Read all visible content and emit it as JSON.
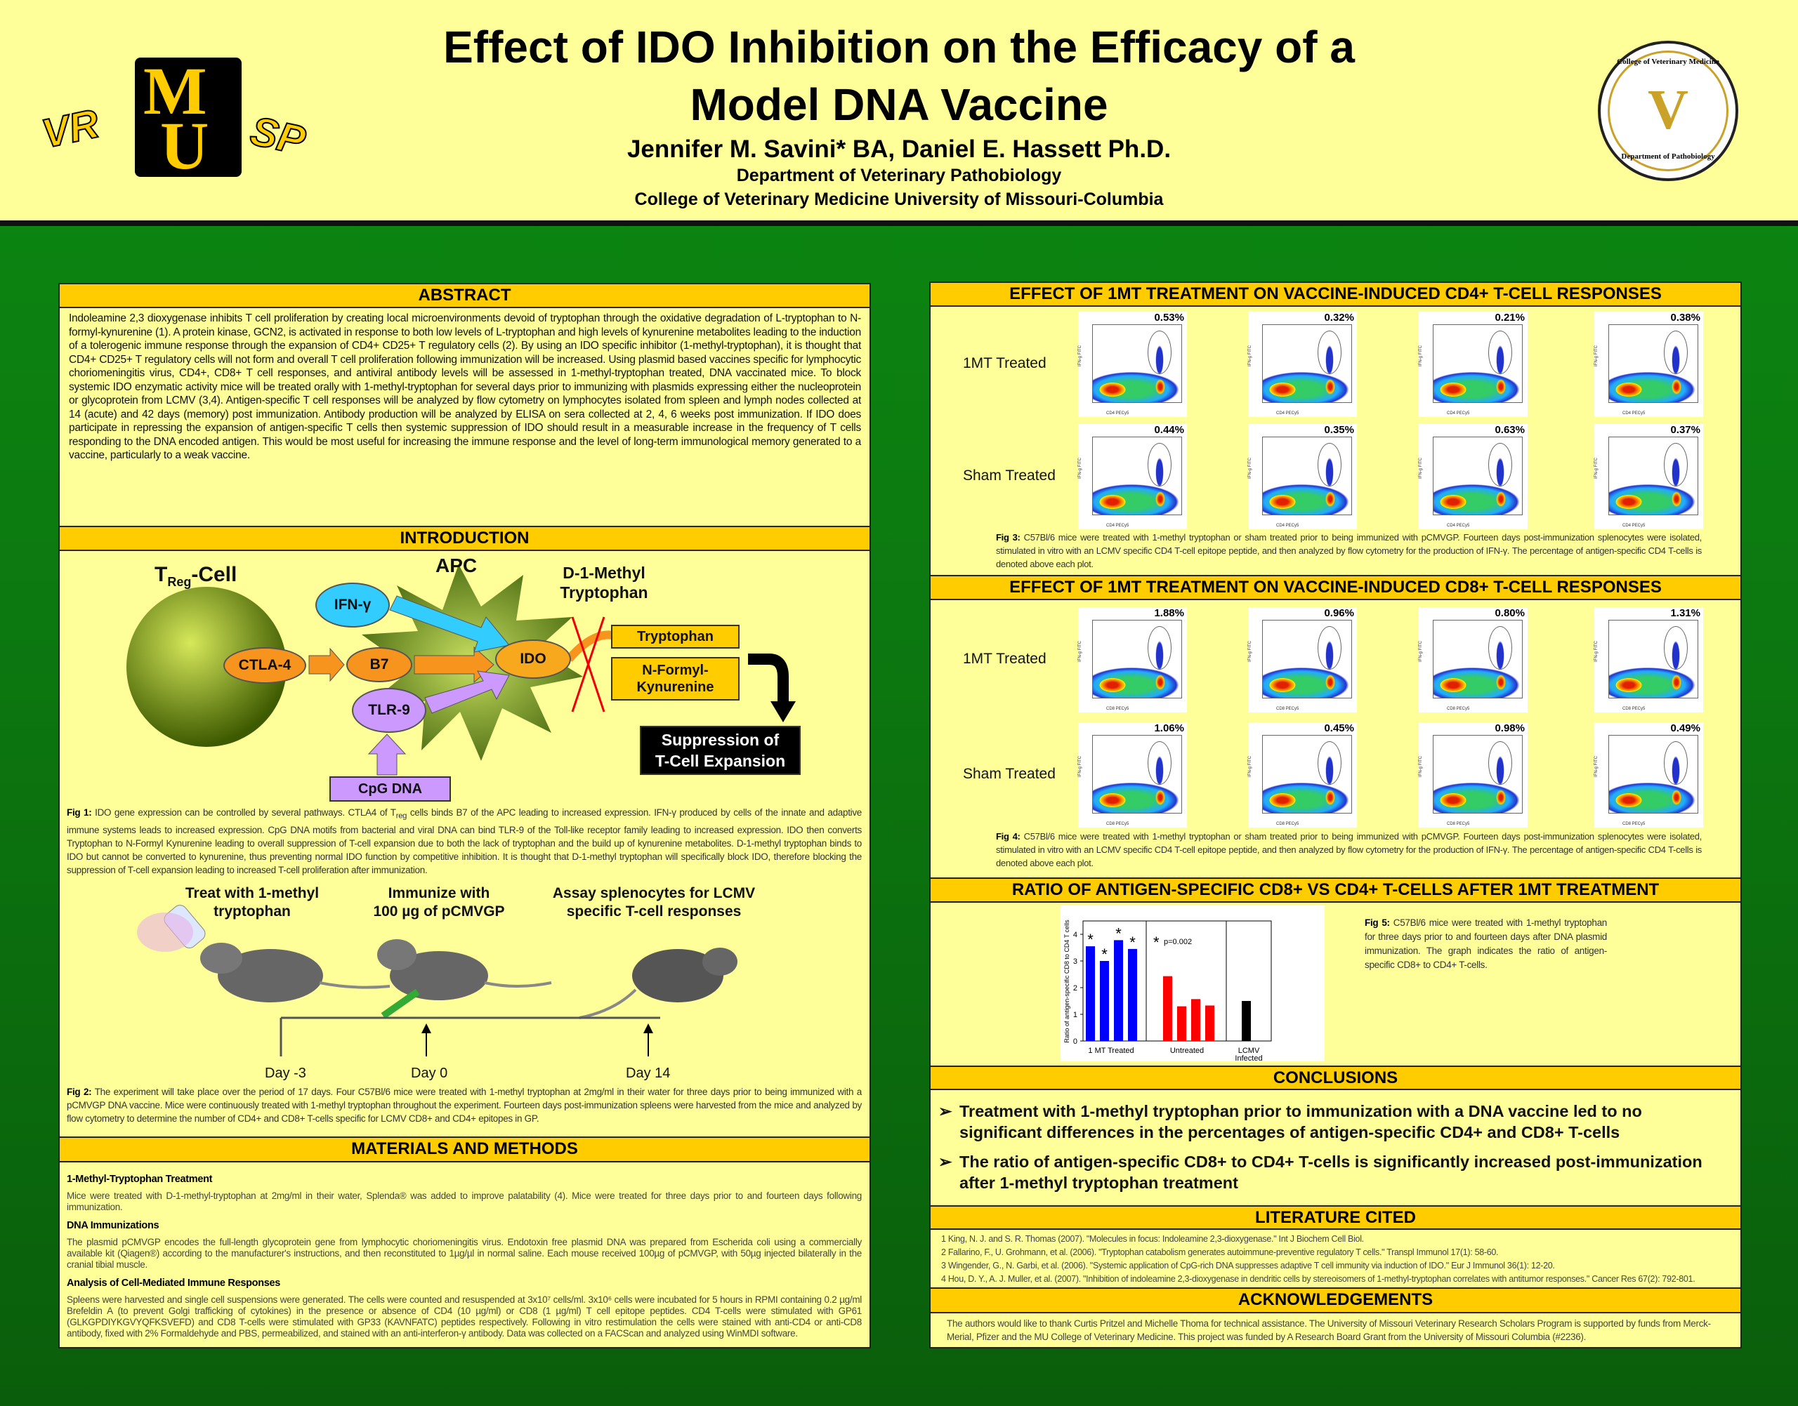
{
  "header": {
    "title_line1": "Effect of IDO Inhibition on the Efficacy of a",
    "title_line2": "Model DNA Vaccine",
    "authors": "Jennifer M. Savini* BA, Daniel E. Hassett Ph.D.",
    "department": "Department of Veterinary Pathobiology",
    "college": "College of Veterinary Medicine  University of Missouri-Columbia",
    "logo_left": {
      "vr": "VR",
      "m": "M",
      "u": "U",
      "sp": "SP"
    },
    "seal": {
      "top": "College of Veterinary Medicine",
      "bottom": "Department of Pathobiology",
      "center": "V"
    }
  },
  "abstract": {
    "heading": "ABSTRACT",
    "text": "Indoleamine 2,3 dioxygenase inhibits T cell proliferation by creating local microenvironments devoid of tryptophan through the oxidative degradation of L-tryptophan to N-formyl-kynurenine (1).  A protein kinase, GCN2, is activated in response to both low levels of L-tryptophan and high levels of kynurenine metabolites leading to the induction of a tolerogenic immune response through the expansion of CD4+ CD25+ T regulatory cells (2).  By using an IDO specific inhibitor (1-methyl-tryptophan), it is thought that CD4+ CD25+ T regulatory cells will not form and overall T cell proliferation following immunization will be increased.   Using plasmid based vaccines specific for lymphocytic choriomeningitis virus, CD4+, CD8+ T cell responses, and antiviral antibody levels will be assessed in 1-methyl-tryptophan treated, DNA vaccinated mice. To block systemic IDO enzymatic activity mice will be treated orally with 1-methyl-tryptophan for several days prior to immunizing with plasmids expressing either the nucleoprotein or glycoprotein from LCMV (3,4).  Antigen-specific T cell responses will be analyzed by flow cytometry on lymphocytes isolated from spleen and lymph nodes collected at 14 (acute) and 42 days (memory) post immunization.  Antibody production will be analyzed by ELISA on sera collected at 2, 4, 6 weeks post immunization.  If IDO does participate in repressing the expansion of antigen-specific T cells then systemic suppression of IDO should result in a measurable increase in the frequency of T cells responding to the DNA encoded antigen. This would be most useful for increasing the immune response and the level of long-term immunological memory generated to a vaccine, particularly to a weak vaccine."
  },
  "intro": {
    "heading": "INTRODUCTION",
    "diagram": {
      "treg": "T",
      "treg_sub": "Reg",
      "treg_suffix": "-Cell",
      "apc": "APC",
      "ctla4": "CTLA-4",
      "b7": "B7",
      "ifn": "IFN-γ",
      "ido": "IDO",
      "tlr9": "TLR-9",
      "cpg": "CpG DNA",
      "d1mt_line1": "D-1-Methyl",
      "d1mt_line2": "Tryptophan",
      "tryptophan": "Tryptophan",
      "kyn_line1": "N-Formyl-",
      "kyn_line2": "Kynurenine",
      "suppression_line1": "Suppression of",
      "suppression_line2": "T-Cell Expansion"
    },
    "fig1": {
      "label": "Fig 1:",
      "text_a": " IDO gene expression can be controlled by several pathways.  CTLA4 of T",
      "sub": "reg",
      "text_b": " cells binds B7 of the APC leading to increased expression.  IFN-γ produced by cells of the innate and adaptive immune systems leads to increased expression.  CpG DNA motifs from bacterial and viral DNA can bind TLR-9 of the Toll-like receptor family leading to increased expression.  IDO then converts Tryptophan to N-Formyl Kynurenine leading to overall suppression of T-cell expansion due to both the lack of tryptophan and the build up of kynurenine metabolites.  D-1-methyl tryptophan binds to IDO but cannot be converted to kynurenine, thus preventing normal IDO function by competitive inhibition.  It is thought that D-1-methyl tryptophan will specifically block IDO, therefore blocking the suppression of T-cell expansion leading to increased T-cell proliferation after immunization."
    },
    "steps": [
      {
        "line1": "Treat with 1-methyl",
        "line2": "tryptophan"
      },
      {
        "line1": "Immunize with",
        "line2": "100 µg of pCMVGP"
      },
      {
        "line1": "Assay splenocytes for LCMV",
        "line2": "specific T-cell responses"
      }
    ],
    "days": [
      "Day -3",
      "Day 0",
      "Day 14"
    ],
    "fig2": {
      "label": "Fig 2:",
      "text": " The experiment will take place over the period of 17 days.  Four C57Bl/6 mice were treated with 1-methyl tryptophan at 2mg/ml in their water for three days prior to being immunized with a pCMVGP DNA vaccine.  Mice were continuously treated with 1-methyl tryptophan throughout the experiment.  Fourteen days post-immunization spleens were harvested from the mice and analyzed by flow cytometry to determine the number of CD4+ and CD8+ T-cells specific for LCMV CD8+ and CD4+ epitopes in GP."
    }
  },
  "methods": {
    "heading": "MATERIALS AND METHODS",
    "sections": [
      {
        "title": "1-Methyl-Tryptophan Treatment",
        "text": "Mice were treated with D-1-methyl-tryptophan at 2mg/ml in their water, Splenda® was added to improve palatability (4).  Mice were treated for three days prior to and fourteen days following immunization."
      },
      {
        "title": "DNA Immunizations",
        "text": "The plasmid pCMVGP encodes the full-length glycoprotein gene from lymphocytic choriomeningitis virus. Endotoxin free plasmid DNA was prepared from Escherida coli using a commercially available kit (Qiagen®) according to the manufacturer's instructions, and then reconstituted to 1µg/µl in normal saline.  Each mouse received 100µg of pCMVGP, with 50µg injected bilaterally in the cranial tibial muscle."
      },
      {
        "title": "Analysis of Cell-Mediated Immune Responses",
        "text": "Spleens were harvested and single cell suspensions were generated.  The cells were counted and resuspended at 3x10⁷ cells/ml. 3x10⁶ cells were incubated for 5 hours in RPMI containing 0.2 µg/ml Brefeldin A (to prevent Golgi trafficking of cytokines) in the presence or absence of CD4 (10 µg/ml) or CD8 (1 µg/ml) T cell epitope  peptides. CD4 T-cells were stimulated with GP61 (GLKGPDIYKGVYQFKSVEFD) and CD8 T-cells were stimulated with GP33 (KAVNFATC) peptides respectively.  Following in vitro restimulation the cells were stained with anti-CD4 or anti-CD8 antibody,  fixed with 2% Formaldehyde and PBS, permeabilized, and stained with an anti-interferon-γ antibody. Data was collected on a FACScan and analyzed  using WinMDI software."
      }
    ]
  },
  "cd4": {
    "heading": "EFFECT OF 1MT TREATMENT ON VACCINE-INDUCED CD4+ T-CELL RESPONSES",
    "rows": [
      {
        "label": "1MT Treated",
        "values": [
          "0.53%",
          "0.32%",
          "0.21%",
          "0.38%"
        ]
      },
      {
        "label": "Sham Treated",
        "values": [
          "0.44%",
          "0.35%",
          "0.63%",
          "0.37%"
        ]
      }
    ],
    "x_axis": "CD4 PECy5",
    "y_axis": "IFN-g FITC",
    "caption_label": "Fig 3:",
    "caption": "  C57Bl/6 mice were treated with 1-methyl tryptophan or sham treated prior to being immunized with pCMVGP.  Fourteen days post-immunization splenocytes were isolated, stimulated in vitro with an LCMV specific CD4 T-cell epitope peptide, and then analyzed by flow cytometry for the production of IFN-γ.  The percentage of antigen-specific CD4 T-cells is denoted above each plot."
  },
  "cd8": {
    "heading": "EFFECT OF 1MT TREATMENT ON VACCINE-INDUCED CD8+ T-CELL RESPONSES",
    "rows": [
      {
        "label": "1MT Treated",
        "values": [
          "1.88%",
          "0.96%",
          "0.80%",
          "1.31%"
        ]
      },
      {
        "label": "Sham Treated",
        "values": [
          "1.06%",
          "0.45%",
          "0.98%",
          "0.49%"
        ]
      }
    ],
    "x_axis": "CD8 PECy5",
    "y_axis": "IFN-g FITC",
    "caption_label": "Fig 4:",
    "caption": " C57Bl/6 mice were treated with 1-methyl tryptophan or sham treated prior to being immunized with pCMVGP.  Fourteen days post-immunization splenocytes were isolated, stimulated in vitro with an LCMV specific CD4 T-cell epitope peptide, and then analyzed by flow cytometry for the production of IFN-γ.  The percentage of antigen-specific CD4 T-cells is denoted above each plot."
  },
  "ratio": {
    "heading": "RATIO OF ANTIGEN-SPECIFIC CD8+ VS CD4+ T-CELLS AFTER 1MT TREATMENT",
    "caption_label": "Fig 5:",
    "caption": " C57Bl/6 mice were treated with 1-methyl tryptophan for three days prior to and fourteen days after DNA plasmid immunization.  The graph indicates the ratio of antigen-specific CD8+ to CD4+ T-cells."
  },
  "chart_data": {
    "type": "bar",
    "title": "",
    "ylabel": "Ratio of antigen-specific CD8 to CD4 T cells",
    "ylim": [
      0,
      4.5
    ],
    "yticks": [
      0,
      1,
      2,
      3,
      4
    ],
    "groups": [
      {
        "name": "1 MT Treated",
        "color": "#0000ff",
        "values": [
          3.55,
          3.0,
          3.78,
          3.45
        ],
        "significant": true
      },
      {
        "name": "Untreated",
        "color": "#ff0000",
        "values": [
          2.43,
          1.3,
          1.57,
          1.33
        ],
        "significant": false
      },
      {
        "name": "LCMV Infected",
        "color": "#000000",
        "values": [
          1.5
        ],
        "significant": false
      }
    ],
    "annotation": {
      "symbol": "*",
      "text": "p=0.002"
    }
  },
  "conclusions": {
    "heading": "CONCLUSIONS",
    "items": [
      "Treatment with 1-methyl tryptophan prior to immunization with a DNA vaccine led to no significant differences in the percentages of antigen-specific CD4+ and CD8+ T-cells",
      "The ratio of antigen-specific CD8+ to CD4+ T-cells is significantly increased post-immunization after 1-methyl tryptophan treatment"
    ]
  },
  "literature": {
    "heading": "LITERATURE CITED",
    "items": [
      "1   King, N. J. and S. R. Thomas (2007). \"Molecules in focus: Indoleamine 2,3-dioxygenase.\" Int J Biochem Cell Biol.",
      "2   Fallarino, F., U. Grohmann, et al. (2006). \"Tryptophan catabolism generates autoimmune-preventive regulatory T cells.\" Transpl Immunol 17(1): 58-60.",
      "3   Wingender, G., N. Garbi, et al. (2006). \"Systemic application of CpG-rich DNA suppresses adaptive T cell immunity via induction of IDO.\" Eur J Immunol 36(1): 12-20.",
      "4   Hou, D. Y., A. J. Muller, et al. (2007). \"Inhibition of indoleamine 2,3-dioxygenase in dendritic cells by stereoisomers of 1-methyl-tryptophan  correlates with antitumor responses.\" Cancer Res 67(2): 792-801."
    ]
  },
  "acknowledgements": {
    "heading": "ACKNOWLEDGEMENTS",
    "text": "The authors would like to thank Curtis Pritzel and Michelle Thoma for technical assistance.  The University of Missouri Veterinary Research Scholars Program is supported by funds from Merck-Merial, Pfizer and the MU College of Veterinary Medicine.  This project was funded by A Research Board Grant from the University of Missouri Columbia (#2236)."
  }
}
